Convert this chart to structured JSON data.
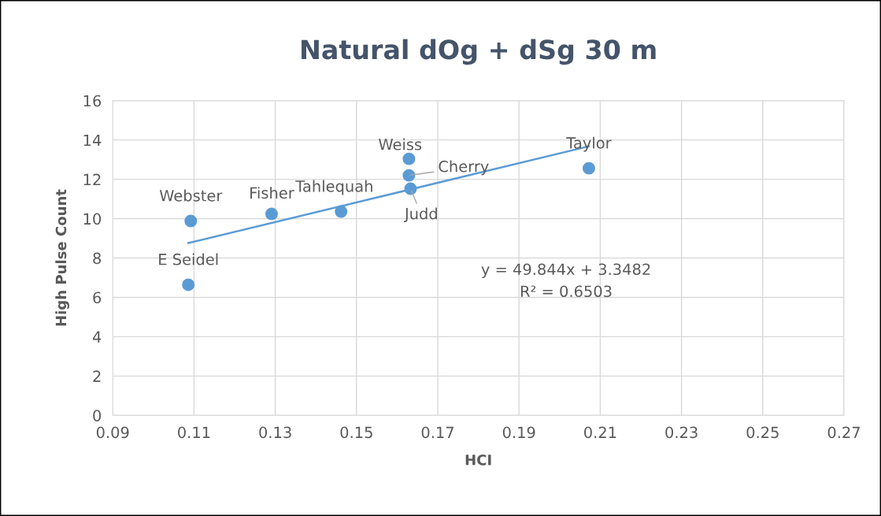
{
  "chart_data": {
    "type": "scatter",
    "title": "Natural dOg + dSg 30 m",
    "xlabel": "HCI",
    "ylabel": "High Pulse Count",
    "series": [
      {
        "color": "#5b9bd5",
        "marker": "circle",
        "x": [
          0.1092,
          0.1086,
          0.1291,
          0.1462,
          0.1629,
          0.1629,
          0.1633,
          0.2072
        ],
        "values": [
          9.88,
          6.64,
          10.24,
          10.36,
          13.04,
          12.2,
          11.52,
          12.56
        ]
      },
      {
        "type": "line",
        "color": "#5b9bd5",
        "x": [
          0.1086,
          0.2072
        ],
        "values": [
          8.76,
          13.68
        ]
      }
    ],
    "annotations": [
      {
        "text": "Webster",
        "x": 0.1092,
        "y": 9.88
      },
      {
        "text": "E Seidel",
        "x": 0.1086,
        "y": 6.64
      },
      {
        "text": "Fisher",
        "x": 0.1291,
        "y": 10.24
      },
      {
        "text": "Tahlequah",
        "x": 0.1462,
        "y": 10.36
      },
      {
        "text": "Weiss",
        "x": 0.1629,
        "y": 13.04
      },
      {
        "text": "Cherry",
        "x": 0.1629,
        "y": 12.2
      },
      {
        "text": "Judd",
        "x": 0.1633,
        "y": 11.52
      },
      {
        "text": "Taylor",
        "x": 0.2072,
        "y": 12.56
      },
      "y = 49.844x + 3.3482",
      "R² = 0.6503"
    ],
    "xlim": [
      0.09,
      0.27
    ],
    "xticks": [
      {
        "value": 0.09,
        "label": "0.09"
      },
      {
        "value": 0.11,
        "label": "0.11"
      },
      {
        "value": 0.13,
        "label": "0.13"
      },
      {
        "value": 0.15,
        "label": "0.15"
      },
      {
        "value": 0.17,
        "label": "0.17"
      },
      {
        "value": 0.19,
        "label": "0.19"
      },
      {
        "value": 0.21,
        "label": "0.21"
      },
      {
        "value": 0.23,
        "label": "0.23"
      },
      {
        "value": 0.25,
        "label": "0.25"
      },
      {
        "value": 0.27,
        "label": "0.27"
      }
    ],
    "ylim": [
      0,
      16
    ],
    "yticks": [
      0,
      2,
      4,
      6,
      8,
      10,
      12,
      14,
      16
    ],
    "grid": true
  }
}
